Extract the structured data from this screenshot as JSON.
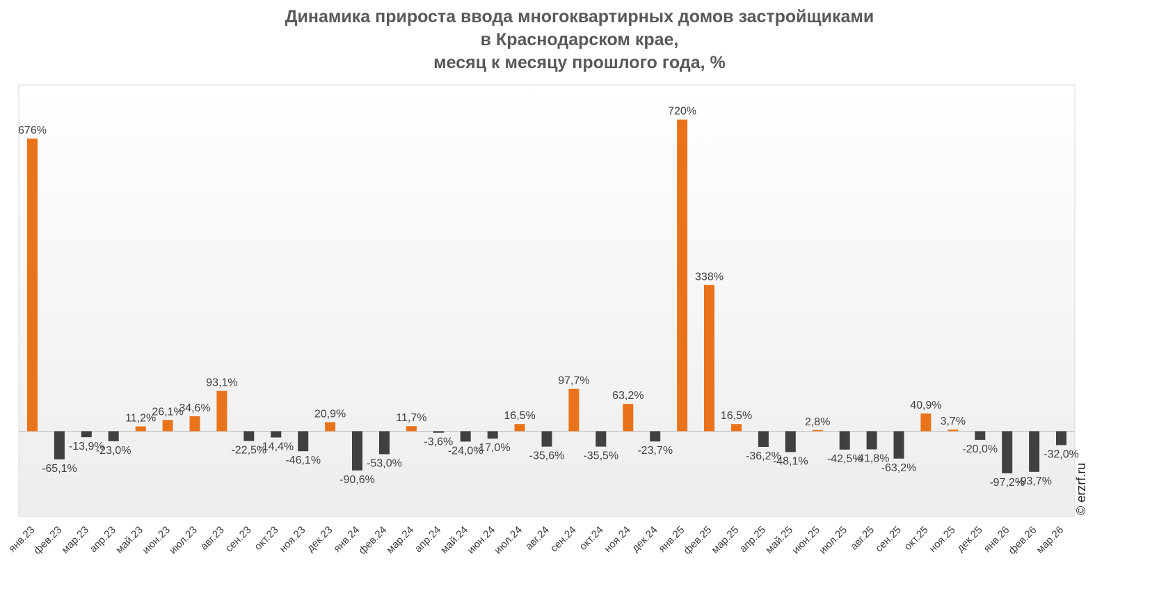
{
  "title_lines": [
    "Динамика прироста ввода многоквартирных домов застройщиками",
    "в Краснодарском крае,",
    "месяц к месяцу прошлого года, %"
  ],
  "watermark": "© erzrf.ru",
  "colors": {
    "positive": "#E8731B",
    "negative": "#404040",
    "plot_bg_bottom": "#EDEDED",
    "zero_line": "#BFBFBF"
  },
  "chart_data": {
    "type": "bar",
    "title": "Динамика прироста ввода многоквартирных домов застройщиками в Краснодарском крае, месяц к месяцу прошлого года, %",
    "xlabel": "",
    "ylabel": "",
    "grid": false,
    "legend": "none",
    "categories": [
      "янв.23",
      "фев.23",
      "мар.23",
      "апр.23",
      "май.23",
      "июн.23",
      "июл.23",
      "авг.23",
      "сен.23",
      "окт.23",
      "ноя.23",
      "дек.23",
      "янв.24",
      "фев.24",
      "мар.24",
      "апр.24",
      "май.24",
      "июн.24",
      "июл.24",
      "авг.24",
      "сен.24",
      "окт.24",
      "ноя.24",
      "дек.24",
      "янв.25",
      "фев.25",
      "мар.25",
      "апр.25",
      "май.25",
      "июн.25",
      "июл.25",
      "авг.25",
      "сен.25",
      "окт.25",
      "ноя.25",
      "дек.25",
      "янв.26",
      "фев.26",
      "мар.26"
    ],
    "values": [
      676,
      -65.1,
      -13.9,
      -23.0,
      11.2,
      26.1,
      34.6,
      93.1,
      -22.5,
      -14.4,
      -46.1,
      20.9,
      -90.6,
      -53.0,
      11.7,
      -3.6,
      -24.0,
      -17.0,
      16.5,
      -35.6,
      97.7,
      -35.5,
      63.2,
      -23.7,
      720,
      338,
      16.5,
      -36.2,
      -48.1,
      2.8,
      -42.5,
      -41.8,
      -63.2,
      40.9,
      3.7,
      -20.0,
      -97.2,
      -93.7,
      -32.0
    ],
    "value_labels": [
      "676%",
      "-65,1%",
      "-13,9%",
      "-23,0%",
      "11,2%",
      "26,1%",
      "34,6%",
      "93,1%",
      "-22,5%",
      "-14,4%",
      "-46,1%",
      "20,9%",
      "-90,6%",
      "-53,0%",
      "11,7%",
      "-3,6%",
      "-24,0%",
      "-17,0%",
      "16,5%",
      "-35,6%",
      "97,7%",
      "-35,5%",
      "63,2%",
      "-23,7%",
      "720%",
      "338%",
      "16,5%",
      "-36,2%",
      "-48,1%",
      "2,8%",
      "-42,5%",
      "-41,8%",
      "-63,2%",
      "40,9%",
      "3,7%",
      "-20,0%",
      "-97,2%",
      "-93,7%",
      "-32,0%"
    ],
    "ylim": [
      -197,
      800
    ]
  }
}
